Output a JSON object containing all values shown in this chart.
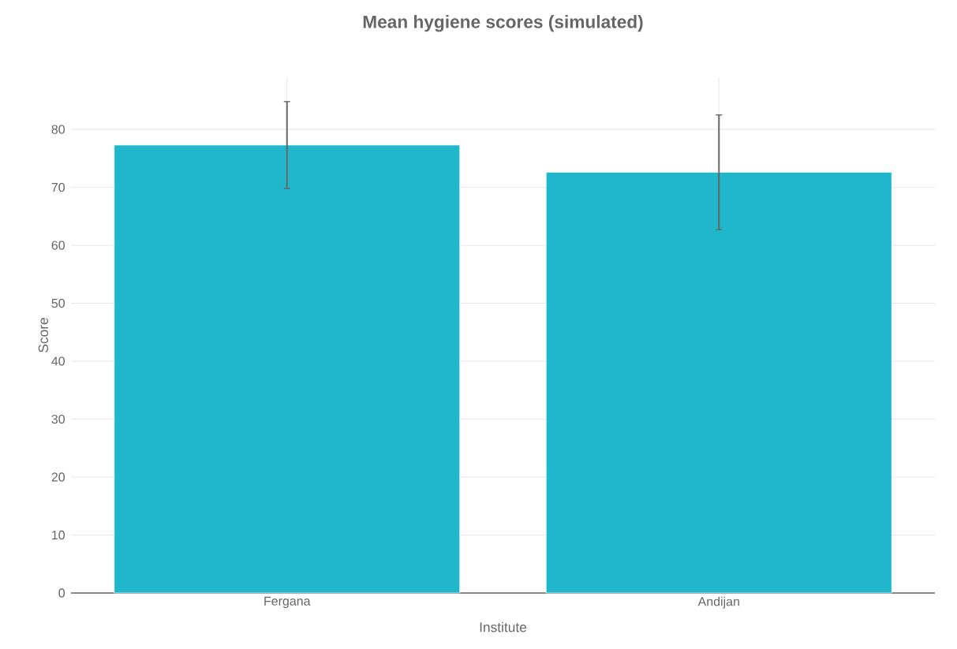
{
  "chart_data": {
    "type": "bar",
    "title": "Mean hygiene scores (simulated)",
    "xlabel": "Institute",
    "ylabel": "Score",
    "categories": [
      "Fergana",
      "Andijan"
    ],
    "values": [
      77.3,
      72.6
    ],
    "errors": [
      7.5,
      9.9
    ],
    "color": "#20b7cc",
    "ylim": [
      0,
      89
    ],
    "yticks": [
      0,
      10,
      20,
      30,
      40,
      50,
      60,
      70,
      80
    ],
    "grid": true
  }
}
